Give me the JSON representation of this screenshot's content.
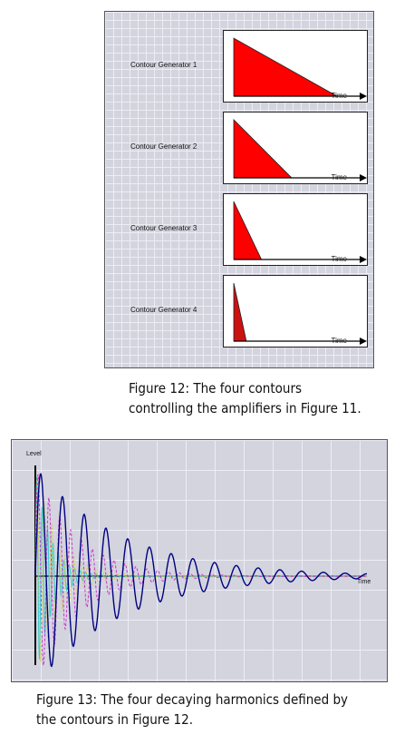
{
  "figure12": {
    "generators": [
      {
        "label": "Contour Generator 1",
        "time_label": "Time",
        "decay": 0.82
      },
      {
        "label": "Contour Generator 2",
        "time_label": "Time",
        "decay": 0.46
      },
      {
        "label": "Contour Generator 3",
        "time_label": "Time",
        "decay": 0.22
      },
      {
        "label": "Contour Generator 4",
        "time_label": "Time",
        "decay": 0.1
      }
    ],
    "caption_line1": "Figure 12: The four contours",
    "caption_line2": "controlling the amplifiers in Figure 11.",
    "fill_color": "#ff0000"
  },
  "figure13": {
    "level_label": "Level",
    "time_label": "Time",
    "caption_line1": "Figure 13: The four decaying harmonics defined by",
    "caption_line2": "the contours in Figure 12.",
    "harmonic_colors": [
      "#000080",
      "#cc33cc",
      "#cccc33",
      "#33cccc"
    ]
  }
}
